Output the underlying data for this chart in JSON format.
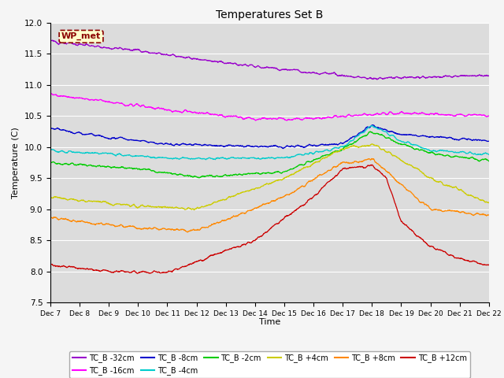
{
  "title": "Temperatures Set B",
  "xlabel": "Time",
  "ylabel": "Temperature (C)",
  "ylim": [
    7.5,
    12.0
  ],
  "yticks": [
    7.5,
    8.0,
    8.5,
    9.0,
    9.5,
    10.0,
    10.5,
    11.0,
    11.5,
    12.0
  ],
  "background_color": "#dcdcdc",
  "fig_facecolor": "#f5f5f5",
  "wp_met_label": "WP_met",
  "legend_colors": [
    "#9900cc",
    "#ff00ff",
    "#0000cc",
    "#00cccc",
    "#00cc00",
    "#cccc00",
    "#ff8800",
    "#cc0000"
  ],
  "legend_labels": [
    "TC_B -32cm",
    "TC_B -16cm",
    "TC_B -8cm",
    "TC_B -4cm",
    "TC_B -2cm",
    "TC_B +4cm",
    "TC_B +8cm",
    "TC_B +12cm"
  ],
  "xtick_labels": [
    "Dec 7",
    "Dec 8",
    "Dec 9",
    "Dec 10",
    "Dec 11",
    "Dec 12",
    "Dec 13",
    "Dec 14",
    "Dec 15",
    "Dec 16",
    "Dec 17",
    "Dec 18",
    "Dec 19",
    "Dec 20",
    "Dec 21",
    "Dec 22"
  ]
}
